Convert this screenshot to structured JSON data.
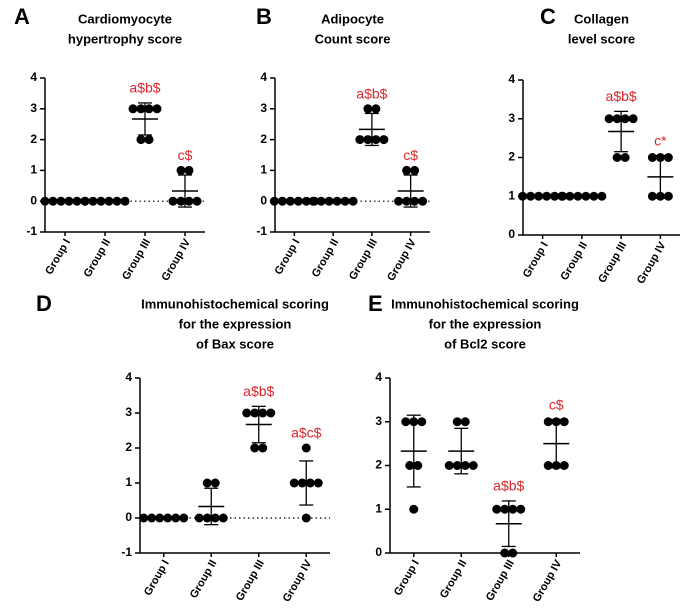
{
  "chart_data": [
    {
      "panel": "A",
      "type": "scatter",
      "title": [
        "Cardiomyocyte",
        "hypertrophy score"
      ],
      "categories": [
        "Group I",
        "Group II",
        "Group III",
        "Group IV"
      ],
      "values": [
        [
          0,
          0,
          0,
          0,
          0,
          0
        ],
        [
          0,
          0,
          0,
          0,
          0,
          0
        ],
        [
          3,
          3,
          3,
          3,
          2,
          2
        ],
        [
          1,
          1,
          0,
          0,
          0,
          0
        ]
      ],
      "means": [
        0,
        0,
        2.67,
        0.33
      ],
      "sd": [
        0,
        0,
        0.52,
        0.52
      ],
      "annotations": [
        null,
        null,
        "a$b$",
        "c$"
      ],
      "ylim": [
        -1,
        4
      ],
      "yticks": [
        -1,
        0,
        1,
        2,
        3,
        4
      ],
      "zero_line": true,
      "color": "#000000"
    },
    {
      "panel": "B",
      "type": "scatter",
      "title": [
        "Adipocyte",
        "Count score"
      ],
      "categories": [
        "Group I",
        "Group II",
        "Group III",
        "Group IV"
      ],
      "values": [
        [
          0,
          0,
          0,
          0,
          0,
          0
        ],
        [
          0,
          0,
          0,
          0,
          0,
          0
        ],
        [
          3,
          3,
          2,
          2,
          2,
          2
        ],
        [
          1,
          1,
          0,
          0,
          0,
          0
        ]
      ],
      "means": [
        0,
        0,
        2.33,
        0.33
      ],
      "sd": [
        0,
        0,
        0.52,
        0.52
      ],
      "annotations": [
        null,
        null,
        "a$b$",
        "c$"
      ],
      "ylim": [
        -1,
        4
      ],
      "yticks": [
        -1,
        0,
        1,
        2,
        3,
        4
      ],
      "zero_line": true,
      "color": "#000000"
    },
    {
      "panel": "C",
      "type": "scatter",
      "title": [
        "Collagen",
        "level score"
      ],
      "categories": [
        "Group I",
        "Group II",
        "Group III",
        "Group IV"
      ],
      "values": [
        [
          1,
          1,
          1,
          1,
          1,
          1
        ],
        [
          1,
          1,
          1,
          1,
          1,
          1
        ],
        [
          3,
          3,
          3,
          3,
          2,
          2
        ],
        [
          2,
          2,
          2,
          1,
          1,
          1
        ]
      ],
      "means": [
        1,
        1,
        2.67,
        1.5
      ],
      "sd": [
        0,
        0,
        0.52,
        0.55
      ],
      "annotations": [
        null,
        null,
        "a$b$",
        "c*"
      ],
      "ylim": [
        0,
        4
      ],
      "yticks": [
        0,
        1,
        2,
        3,
        4
      ],
      "zero_line": false,
      "color": "#000000"
    },
    {
      "panel": "D",
      "type": "scatter",
      "title": [
        "Immunohistochemical scoring",
        "for the expression",
        "of Bax  score"
      ],
      "categories": [
        "Group I",
        "Group II",
        "Group III",
        "Group IV"
      ],
      "values": [
        [
          0,
          0,
          0,
          0,
          0,
          0
        ],
        [
          1,
          1,
          0,
          0,
          0,
          0
        ],
        [
          3,
          3,
          3,
          3,
          2,
          2
        ],
        [
          2,
          1,
          1,
          1,
          1,
          0
        ]
      ],
      "means": [
        0,
        0.33,
        2.67,
        1
      ],
      "sd": [
        0,
        0.52,
        0.52,
        0.63
      ],
      "annotations": [
        null,
        null,
        "a$b$",
        "a$c$"
      ],
      "ylim": [
        -1,
        4
      ],
      "yticks": [
        -1,
        0,
        1,
        2,
        3,
        4
      ],
      "zero_line": true,
      "color": "#000000"
    },
    {
      "panel": "E",
      "type": "scatter",
      "title": [
        "Immunohistochemical scoring",
        "for the expression",
        "of Bcl2 score"
      ],
      "categories": [
        "Group I",
        "Group II",
        "Group III",
        "Group IV"
      ],
      "values": [
        [
          3,
          3,
          3,
          2,
          2,
          1
        ],
        [
          3,
          3,
          2,
          2,
          2,
          2
        ],
        [
          1,
          1,
          1,
          1,
          0,
          0
        ],
        [
          3,
          3,
          3,
          2,
          2,
          2
        ]
      ],
      "means": [
        2.33,
        2.33,
        0.67,
        2.5
      ],
      "sd": [
        0.82,
        0.52,
        0.52,
        0.55
      ],
      "annotations": [
        null,
        null,
        "a$b$",
        "c$"
      ],
      "ylim": [
        0,
        4
      ],
      "yticks": [
        0,
        1,
        2,
        3,
        4
      ],
      "zero_line": false,
      "color": "#000000"
    }
  ]
}
